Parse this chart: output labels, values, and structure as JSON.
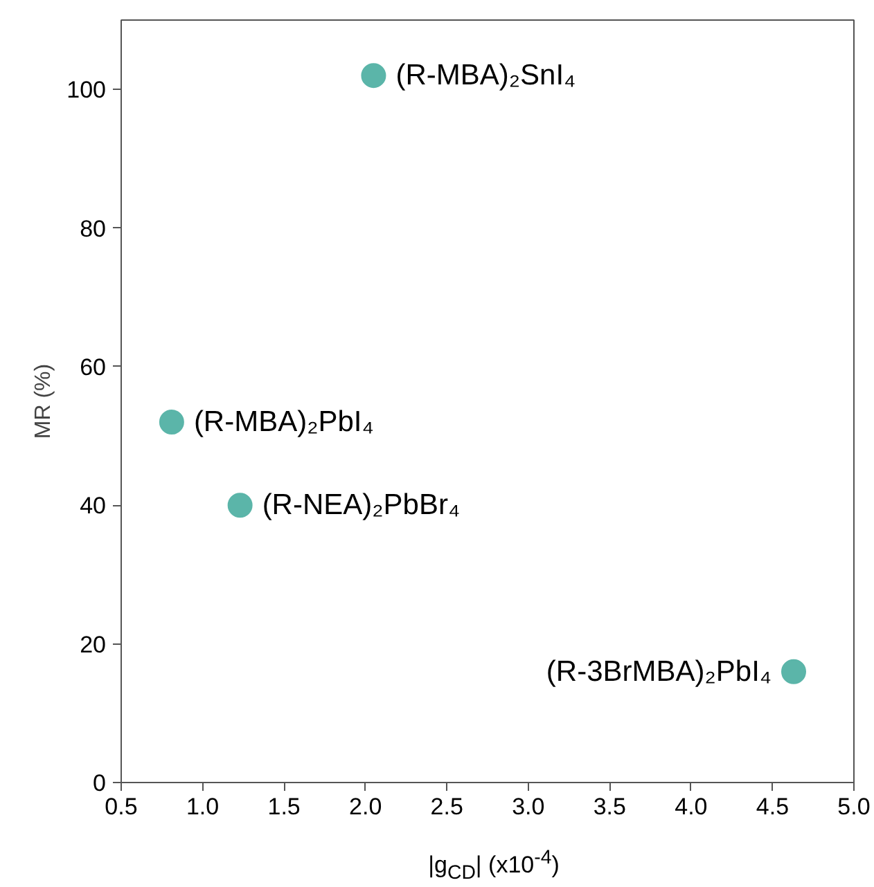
{
  "chart_data": {
    "type": "scatter",
    "xlabel": "|g$_{CD}$| (x10$^{-4}$)",
    "ylabel": "MR (%)",
    "x": [
      0.81,
      1.23,
      2.05,
      4.63
    ],
    "values": [
      52,
      40,
      102,
      16
    ],
    "color": "#5bb5a9",
    "marker": "circle",
    "grid": false,
    "xlim": [
      0.5,
      5.0
    ],
    "xticks": [
      {
        "value": 0.5,
        "label": "0.5"
      },
      {
        "value": 1.0,
        "label": "1.0"
      },
      {
        "value": 1.5,
        "label": "1.5"
      },
      {
        "value": 2.0,
        "label": "2.0"
      },
      {
        "value": 2.5,
        "label": "2.5"
      },
      {
        "value": 3.0,
        "label": "3.0"
      },
      {
        "value": 3.5,
        "label": "3.5"
      },
      {
        "value": 4.0,
        "label": "4.0"
      },
      {
        "value": 4.5,
        "label": "4.5"
      },
      {
        "value": 5.0,
        "label": "5.0"
      }
    ],
    "ylim": [
      0,
      110
    ],
    "yticks": [
      0,
      20,
      40,
      60,
      80,
      100
    ],
    "annotations": [
      {
        "text": "(R-MBA)₂PbI₄",
        "x": 0.81,
        "y": 52
      },
      {
        "text": "(R-NEA)₂PbBr₄",
        "x": 1.23,
        "y": 40
      },
      {
        "text": "(R-MBA)₂SnI₄",
        "x": 2.05,
        "y": 102
      },
      {
        "text": "(R-3BrMBA)₂PbI₄",
        "x": 4.63,
        "y": 16
      }
    ]
  }
}
